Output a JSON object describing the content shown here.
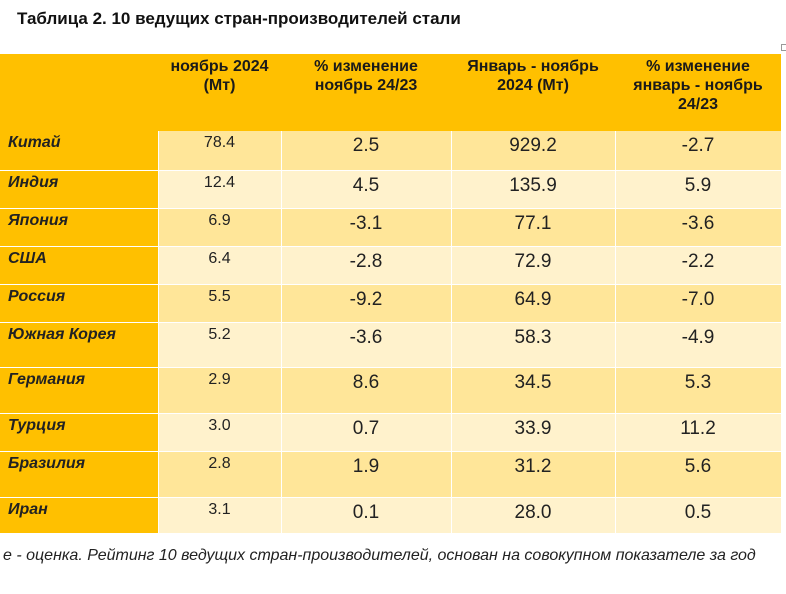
{
  "title": "Таблица 2. 10 ведущих стран-производителей стали",
  "columns": [
    "",
    "ноябрь 2024 (Мт)",
    "% изменение ноябрь 24/23",
    "Январь - ноябрь 2024 (Мт)",
    "% изменение январь - ноябрь 24/23"
  ],
  "rows": [
    {
      "country": "Китай",
      "nov_2024": "78.4",
      "nov_change": "2.5",
      "jan_nov_2024": "929.2",
      "jan_nov_change": "-2.7"
    },
    {
      "country": "Индия",
      "nov_2024": "12.4",
      "nov_change": "4.5",
      "jan_nov_2024": "135.9",
      "jan_nov_change": "5.9"
    },
    {
      "country": "Япония",
      "nov_2024": "6.9",
      "nov_change": "-3.1",
      "jan_nov_2024": "77.1",
      "jan_nov_change": "-3.6"
    },
    {
      "country": "США",
      "nov_2024": "6.4",
      "nov_change": "-2.8",
      "jan_nov_2024": "72.9",
      "jan_nov_change": "-2.2"
    },
    {
      "country": "Россия",
      "nov_2024": "5.5",
      "nov_change": "-9.2",
      "jan_nov_2024": "64.9",
      "jan_nov_change": "-7.0"
    },
    {
      "country": "Южная Корея",
      "nov_2024": "5.2",
      "nov_change": "-3.6",
      "jan_nov_2024": "58.3",
      "jan_nov_change": "-4.9"
    },
    {
      "country": "Германия",
      "nov_2024": "2.9",
      "nov_change": "8.6",
      "jan_nov_2024": "34.5",
      "jan_nov_change": "5.3"
    },
    {
      "country": "Турция",
      "nov_2024": "3.0",
      "nov_change": "0.7",
      "jan_nov_2024": "33.9",
      "jan_nov_change": "11.2"
    },
    {
      "country": "Бразилия",
      "nov_2024": "2.8",
      "nov_change": "1.9",
      "jan_nov_2024": "31.2",
      "jan_nov_change": "5.6"
    },
    {
      "country": "Иран",
      "nov_2024": "3.1",
      "nov_change": "0.1",
      "jan_nov_2024": "28.0",
      "jan_nov_change": "0.5"
    }
  ],
  "footnote": " e - оценка. Рейтинг 10 ведущих стран-производителей, основан на совокупном показателе за год",
  "colors": {
    "header": "#ffc000",
    "row_odd": "#ffe699",
    "row_even": "#fff2cc"
  }
}
